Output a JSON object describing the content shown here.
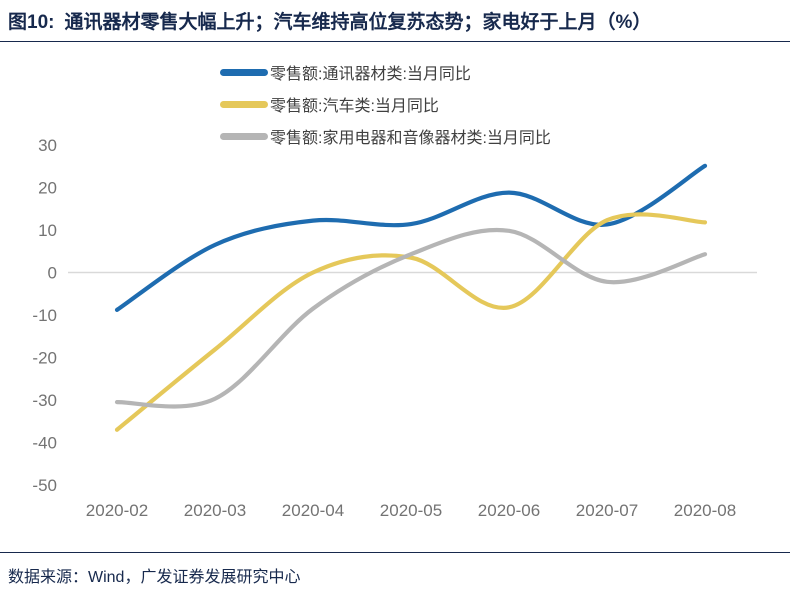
{
  "header": {
    "figure_label": "图10:",
    "title": "通讯器材零售大幅上升；汽车维持高位复苏态势；家电好于上月（%）"
  },
  "footer": {
    "source": "数据来源：Wind，广发证券发展研究中心"
  },
  "colors": {
    "navy_text": "#17294D",
    "axis_text": "#737373",
    "legend_text": "#404040",
    "gridline": "#D9D9D9"
  },
  "chart_data": {
    "type": "line",
    "smoothed": true,
    "title": "通讯器材零售大幅上升；汽车维持高位复苏态势；家电好于上月（%）",
    "categories": [
      "2020-02",
      "2020-03",
      "2020-04",
      "2020-05",
      "2020-06",
      "2020-07",
      "2020-08"
    ],
    "series": [
      {
        "id": "communications-equipment",
        "name": "零售额:通讯器材类:当月同比",
        "color": "#1E6CB0",
        "values": [
          -8.8,
          6.5,
          12.2,
          11.4,
          18.8,
          11.3,
          25.1
        ]
      },
      {
        "id": "autos",
        "name": "零售额:汽车类:当月同比",
        "color": "#E5C85A",
        "values": [
          -37.0,
          -18.1,
          0.0,
          3.5,
          -8.2,
          12.3,
          11.8
        ]
      },
      {
        "id": "home-appliances",
        "name": "零售额:家用电器和音像器材类:当月同比",
        "color": "#B5B5B5",
        "values": [
          -30.5,
          -29.7,
          -8.5,
          4.3,
          9.8,
          -2.2,
          4.3
        ]
      }
    ],
    "xlabel": "",
    "ylabel": "",
    "ylim": [
      -50,
      30
    ],
    "yticks": [
      30,
      20,
      10,
      0,
      -10,
      -20,
      -30,
      -40,
      -50
    ],
    "grid_values": [
      0
    ],
    "grid": "zero-line-only",
    "legend_position": "top-left"
  }
}
